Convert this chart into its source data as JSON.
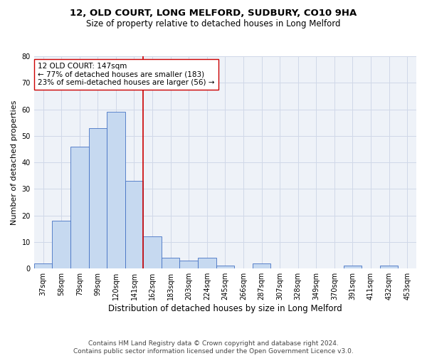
{
  "title": "12, OLD COURT, LONG MELFORD, SUDBURY, CO10 9HA",
  "subtitle": "Size of property relative to detached houses in Long Melford",
  "xlabel": "Distribution of detached houses by size in Long Melford",
  "ylabel": "Number of detached properties",
  "categories": [
    "37sqm",
    "58sqm",
    "79sqm",
    "99sqm",
    "120sqm",
    "141sqm",
    "162sqm",
    "183sqm",
    "203sqm",
    "224sqm",
    "245sqm",
    "266sqm",
    "287sqm",
    "307sqm",
    "328sqm",
    "349sqm",
    "370sqm",
    "391sqm",
    "411sqm",
    "432sqm",
    "453sqm"
  ],
  "values": [
    2,
    18,
    46,
    53,
    59,
    33,
    12,
    4,
    3,
    4,
    1,
    0,
    2,
    0,
    0,
    0,
    0,
    1,
    0,
    1,
    0
  ],
  "bar_color": "#c6d9f0",
  "bar_edgecolor": "#4472c4",
  "vline_x": 5.5,
  "vline_color": "#cc0000",
  "annotation_line1": "12 OLD COURT: 147sqm",
  "annotation_line2": "← 77% of detached houses are smaller (183)",
  "annotation_line3": "23% of semi-detached houses are larger (56) →",
  "annotation_box_color": "#ffffff",
  "annotation_box_edgecolor": "#cc0000",
  "ylim": [
    0,
    80
  ],
  "yticks": [
    0,
    10,
    20,
    30,
    40,
    50,
    60,
    70,
    80
  ],
  "grid_color": "#d0d8e8",
  "background_color": "#eef2f8",
  "footer_line1": "Contains HM Land Registry data © Crown copyright and database right 2024.",
  "footer_line2": "Contains public sector information licensed under the Open Government Licence v3.0.",
  "title_fontsize": 9.5,
  "subtitle_fontsize": 8.5,
  "xlabel_fontsize": 8.5,
  "ylabel_fontsize": 8,
  "tick_fontsize": 7,
  "annotation_fontsize": 7.5,
  "footer_fontsize": 6.5
}
